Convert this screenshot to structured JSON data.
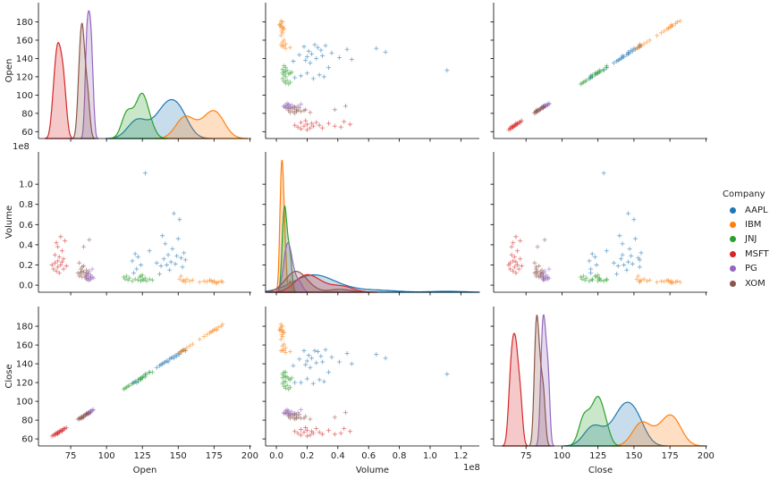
{
  "chart_data": {
    "type": "scatter",
    "kind": "pairplot",
    "variables": [
      "Open",
      "Volume",
      "Close"
    ],
    "diagonal": "kde",
    "marker": "+",
    "hue": "Company",
    "legend": {
      "title": "Company",
      "placement": "right"
    },
    "colors": {
      "AAPL": "#1f77b4",
      "IBM": "#ff7f0e",
      "JNJ": "#2ca02c",
      "MSFT": "#d62728",
      "PG": "#9467bd",
      "XOM": "#8c564b"
    },
    "axes": {
      "Open": {
        "lim": [
          52.5,
          201
        ],
        "ticks": [
          60,
          80,
          100,
          120,
          140,
          160,
          180
        ],
        "xticks": [
          75,
          100,
          125,
          150,
          175,
          200
        ],
        "label": "Open"
      },
      "Volume": {
        "lim": [
          -7000000,
          132000000
        ],
        "ticks": [
          0,
          20000000,
          40000000,
          60000000,
          80000000,
          100000000
        ],
        "tick_labels": [
          "0.0",
          "0.2",
          "0.4",
          "0.6",
          "0.8",
          "1.0"
        ],
        "xticks": [
          0,
          20000000,
          40000000,
          60000000,
          80000000,
          100000000,
          120000000
        ],
        "xtick_labels": [
          "0.0",
          "0.2",
          "0.4",
          "0.6",
          "0.8",
          "1.0",
          "1.2"
        ],
        "offset_text": "1e8",
        "label": "Volume"
      },
      "Close": {
        "lim": [
          52.5,
          201
        ],
        "ticks": [
          60,
          80,
          100,
          120,
          140,
          160,
          180
        ],
        "xticks": [
          75,
          100,
          125,
          150,
          175,
          200
        ],
        "label": "Close"
      }
    },
    "series": [
      {
        "name": "AAPL",
        "points": [
          [
            118,
            24000000.0,
            119
          ],
          [
            119,
            12000000.0,
            120
          ],
          [
            120,
            31000000.0,
            121
          ],
          [
            121,
            16000000.0,
            120
          ],
          [
            122,
            28000000.0,
            123
          ],
          [
            124,
            20000000.0,
            124
          ],
          [
            130,
            34000000.0,
            131
          ],
          [
            135,
            22000000.0,
            136
          ],
          [
            138,
            19000000.0,
            139
          ],
          [
            140,
            26000000.0,
            141
          ],
          [
            141,
            41000000.0,
            142
          ],
          [
            142,
            20000000.0,
            143
          ],
          [
            143,
            30000000.0,
            142
          ],
          [
            144,
            15000000.0,
            145
          ],
          [
            145,
            23000000.0,
            146
          ],
          [
            146,
            36000000.0,
            147
          ],
          [
            147,
            71000000.0,
            146
          ],
          [
            148,
            21000000.0,
            149
          ],
          [
            150,
            46000000.0,
            151
          ],
          [
            151,
            65000000.0,
            150
          ],
          [
            152,
            27000000.0,
            153
          ],
          [
            153,
            18000000.0,
            154
          ],
          [
            154,
            32000000.0,
            155
          ],
          [
            155,
            25000000.0,
            154
          ],
          [
            127,
            111000000.0,
            129
          ],
          [
            139,
            49000000.0,
            140
          ],
          [
            149,
            29000000.0,
            148
          ],
          [
            137,
            11000000.0,
            138
          ]
        ]
      },
      {
        "name": "IBM",
        "points": [
          [
            151,
            6000000.0,
            152
          ],
          [
            152,
            9000000.0,
            153
          ],
          [
            153,
            4000000.0,
            154
          ],
          [
            154,
            5000000.0,
            155
          ],
          [
            155,
            3000000.0,
            154
          ],
          [
            156,
            6000000.0,
            157
          ],
          [
            158,
            4000000.0,
            159
          ],
          [
            160,
            5000000.0,
            161
          ],
          [
            165,
            3000000.0,
            166
          ],
          [
            168,
            4000000.0,
            169
          ],
          [
            170,
            3500000.0,
            171
          ],
          [
            172,
            5000000.0,
            173
          ],
          [
            174,
            3000000.0,
            175
          ],
          [
            175,
            4000000.0,
            176
          ],
          [
            176,
            2500000.0,
            177
          ],
          [
            178,
            3000000.0,
            179
          ],
          [
            180,
            4000000.0,
            180
          ],
          [
            181,
            3000000.0,
            182
          ],
          [
            177,
            2000000.0,
            176
          ],
          [
            173,
            4500000.0,
            174
          ]
        ]
      },
      {
        "name": "JNJ",
        "points": [
          [
            112,
            8000000.0,
            113
          ],
          [
            113,
            6000000.0,
            114
          ],
          [
            114,
            9000000.0,
            115
          ],
          [
            115,
            5000000.0,
            116
          ],
          [
            116,
            7000000.0,
            117
          ],
          [
            118,
            4000000.0,
            119
          ],
          [
            120,
            6000000.0,
            121
          ],
          [
            122,
            5000000.0,
            121
          ],
          [
            123,
            8000000.0,
            124
          ],
          [
            124,
            4000000.0,
            125
          ],
          [
            125,
            6000000.0,
            126
          ],
          [
            125,
            10000000.0,
            125
          ],
          [
            126,
            5000000.0,
            127
          ],
          [
            127,
            7000000.0,
            126
          ],
          [
            128,
            4000000.0,
            129
          ],
          [
            130,
            6000000.0,
            131
          ],
          [
            132,
            5000000.0,
            131
          ],
          [
            124,
            9000000.0,
            123
          ]
        ]
      },
      {
        "name": "MSFT",
        "points": [
          [
            62,
            20000000.0,
            63
          ],
          [
            63,
            16000000.0,
            64
          ],
          [
            64,
            30000000.0,
            65
          ],
          [
            64,
            22000000.0,
            64
          ],
          [
            65,
            14000000.0,
            66
          ],
          [
            65,
            42000000.0,
            66
          ],
          [
            66,
            24000000.0,
            66
          ],
          [
            66,
            18000000.0,
            67
          ],
          [
            67,
            28000000.0,
            67
          ],
          [
            67,
            12000000.0,
            68
          ],
          [
            68,
            48000000.0,
            68
          ],
          [
            68,
            20000000.0,
            69
          ],
          [
            69,
            34000000.0,
            69
          ],
          [
            70,
            16000000.0,
            70
          ],
          [
            70,
            26000000.0,
            71
          ],
          [
            71,
            44000000.0,
            71
          ],
          [
            72,
            19000000.0,
            72
          ],
          [
            66,
            38000000.0,
            65
          ],
          [
            69,
            23000000.0,
            68
          ]
        ]
      },
      {
        "name": "PG",
        "points": [
          [
            85,
            8000000.0,
            85
          ],
          [
            86,
            12000000.0,
            86
          ],
          [
            86,
            6000000.0,
            87
          ],
          [
            87,
            9000000.0,
            87
          ],
          [
            87,
            5000000.0,
            88
          ],
          [
            88,
            14000000.0,
            88
          ],
          [
            88,
            7000000.0,
            89
          ],
          [
            89,
            10000000.0,
            89
          ],
          [
            89,
            6000000.0,
            90
          ],
          [
            90,
            8000000.0,
            90
          ],
          [
            90,
            16000000.0,
            91
          ],
          [
            91,
            7000000.0,
            91
          ],
          [
            88,
            5000000.0,
            87
          ],
          [
            87,
            11000000.0,
            86
          ],
          [
            89,
            8000000.0,
            88
          ],
          [
            86,
            9000000.0,
            86
          ]
        ]
      },
      {
        "name": "XOM",
        "points": [
          [
            80,
            12000000.0,
            81
          ],
          [
            81,
            22000000.0,
            81
          ],
          [
            81,
            9000000.0,
            82
          ],
          [
            82,
            16000000.0,
            82
          ],
          [
            82,
            11000000.0,
            83
          ],
          [
            83,
            14000000.0,
            83
          ],
          [
            83,
            8000000.0,
            84
          ],
          [
            84,
            19000000.0,
            84
          ],
          [
            84,
            13000000.0,
            85
          ],
          [
            85,
            10000000.0,
            85
          ],
          [
            86,
            15000000.0,
            86
          ],
          [
            86,
            7000000.0,
            87
          ],
          [
            87,
            12000000.0,
            87
          ],
          [
            88,
            45000000.0,
            88
          ],
          [
            83,
            18000000.0,
            82
          ],
          [
            82,
            13000000.0,
            82
          ],
          [
            84,
            38000000.0,
            83
          ]
        ]
      }
    ]
  }
}
